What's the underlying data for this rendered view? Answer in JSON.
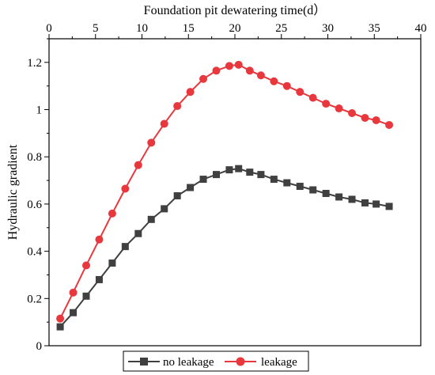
{
  "chart_data": {
    "type": "line",
    "xlabel": "Foundation pit dewatering time(d）",
    "ylabel": "Hydraulic gradient",
    "xlim": [
      0,
      40
    ],
    "ylim": [
      0,
      1.3
    ],
    "x_ticks": [
      "0",
      "5",
      "10",
      "15",
      "20",
      "25",
      "30",
      "35",
      "40"
    ],
    "y_ticks": [
      "0",
      "0.2",
      "0.4",
      "0.6",
      "0.8",
      "1",
      "1.2"
    ],
    "x_axis_position": "top",
    "grid": false,
    "legend_position": "bottom-center",
    "series": [
      {
        "name": "no leakage",
        "color": "#404040",
        "marker": "square",
        "x": [
          1.2,
          2.6,
          4.0,
          5.4,
          6.8,
          8.2,
          9.6,
          11.0,
          12.4,
          13.8,
          15.2,
          16.6,
          18.0,
          19.4,
          20.4,
          21.6,
          22.8,
          24.2,
          25.6,
          27.0,
          28.4,
          29.8,
          31.2,
          32.6,
          34.0,
          35.2,
          36.6
        ],
        "y": [
          0.08,
          0.14,
          0.21,
          0.28,
          0.35,
          0.42,
          0.475,
          0.535,
          0.58,
          0.635,
          0.67,
          0.705,
          0.725,
          0.745,
          0.75,
          0.735,
          0.725,
          0.705,
          0.69,
          0.675,
          0.66,
          0.645,
          0.63,
          0.62,
          0.605,
          0.6,
          0.59
        ]
      },
      {
        "name": "leakage",
        "color": "#e8383d",
        "marker": "circle",
        "x": [
          1.2,
          2.6,
          4.0,
          5.4,
          6.8,
          8.2,
          9.6,
          11.0,
          12.4,
          13.8,
          15.2,
          16.6,
          18.0,
          19.4,
          20.4,
          21.6,
          22.8,
          24.2,
          25.6,
          27.0,
          28.4,
          29.8,
          31.2,
          32.6,
          34.0,
          35.2,
          36.6
        ],
        "y": [
          0.115,
          0.225,
          0.34,
          0.45,
          0.56,
          0.665,
          0.765,
          0.86,
          0.94,
          1.015,
          1.075,
          1.13,
          1.165,
          1.185,
          1.19,
          1.165,
          1.145,
          1.12,
          1.1,
          1.075,
          1.05,
          1.025,
          1.005,
          0.985,
          0.965,
          0.955,
          0.935
        ]
      }
    ]
  }
}
